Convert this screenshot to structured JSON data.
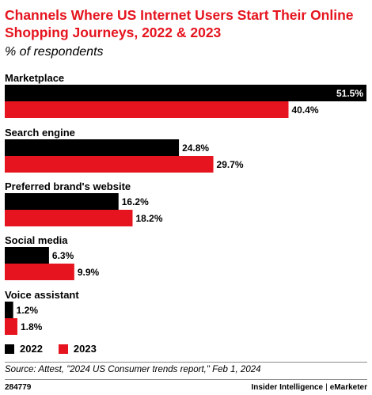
{
  "title": "Channels Where US Internet Users Start Their Online Shopping Journeys, 2022 & 2023",
  "subtitle": "% of respondents",
  "colors": {
    "series_2022": "#000000",
    "series_2023": "#e5141e",
    "title": "#e5141e"
  },
  "chart_data": {
    "type": "bar",
    "orientation": "horizontal",
    "categories": [
      "Marketplace",
      "Search engine",
      "Preferred brand's website",
      "Social media",
      "Voice assistant"
    ],
    "series": [
      {
        "name": "2022",
        "values": [
          51.5,
          24.8,
          16.2,
          6.3,
          1.2
        ],
        "labels": [
          "51.5%",
          "24.8%",
          "16.2%",
          "6.3%",
          "1.2%"
        ]
      },
      {
        "name": "2023",
        "values": [
          40.4,
          29.7,
          18.2,
          9.9,
          1.8
        ],
        "labels": [
          "40.4%",
          "29.7%",
          "18.2%",
          "9.9%",
          "1.8%"
        ]
      }
    ],
    "xlim": [
      0,
      51.5
    ],
    "grid": false,
    "legend": "bottom-left"
  },
  "legend": {
    "item_2022": "2022",
    "item_2023": "2023"
  },
  "footer": {
    "source": "Source: Attest, \"2024 US Consumer trends report,\" Feb 1, 2024",
    "chart_id": "284779",
    "brand_left": "Insider Intelligence",
    "brand_sep": "|",
    "brand_right": "eMarketer"
  }
}
